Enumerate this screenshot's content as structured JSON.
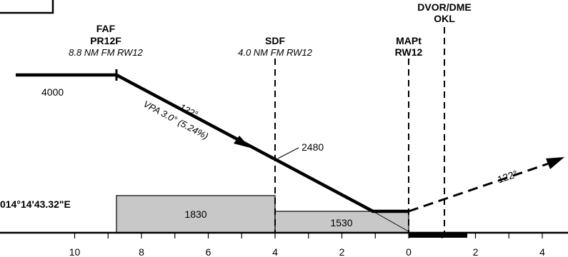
{
  "fixes": {
    "faf": {
      "role": "FAF",
      "name": "PR12F",
      "distance": "8.8 NM FM RW12"
    },
    "sdf": {
      "name": "SDF",
      "distance": "4.0 NM FM RW12"
    },
    "mapt": {
      "role": "MAPt",
      "name": "RW12"
    },
    "navaid": {
      "type": "DVOR/DME",
      "ident": "OKL"
    }
  },
  "altitudes": {
    "initial": "4000",
    "at_sdf": "2480"
  },
  "approach_path": {
    "course": "122°",
    "vpa": "VPA 3.0° (5.24%)"
  },
  "missed_approach": {
    "course": "122°"
  },
  "coordinate_fragment": "014°14'43.32\"E",
  "minimum_altitude_boxes": [
    {
      "value": "1830"
    },
    {
      "value": "1530"
    }
  ],
  "distance_scale": {
    "labels": [
      "10",
      "8",
      "6",
      "4",
      "2",
      "0",
      "2",
      "4"
    ]
  },
  "colors": {
    "line": "#000000",
    "box_fill": "#c8c8c8",
    "background": "#ffffff"
  }
}
